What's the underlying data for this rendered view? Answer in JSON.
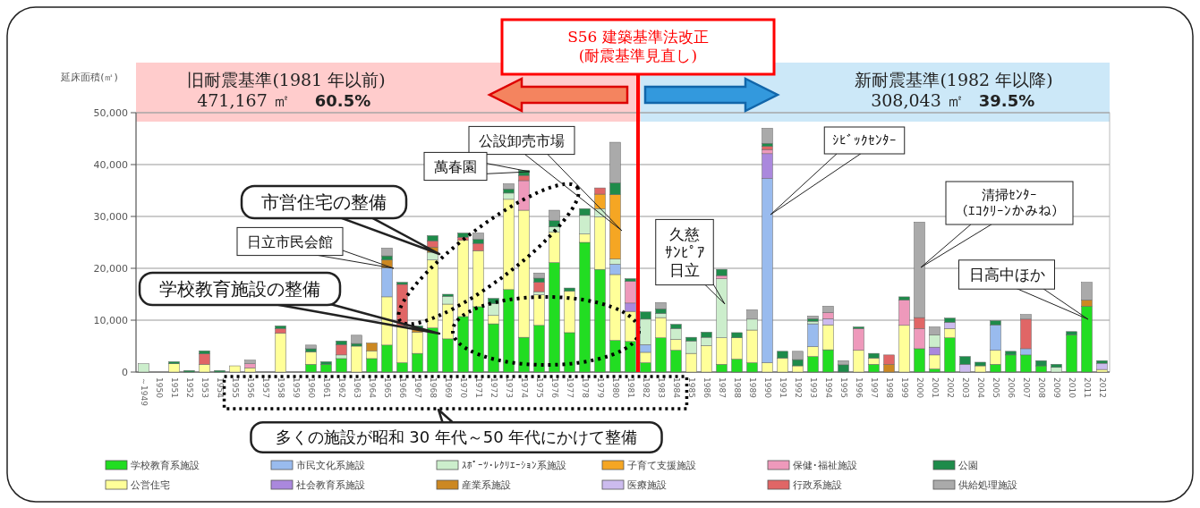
{
  "chart_data": {
    "type": "bar",
    "stacked": true,
    "ylabel": "延床面積(㎡)",
    "categories": [
      "～1949",
      "1950",
      "1951",
      "1952",
      "1953",
      "1954",
      "1955",
      "1956",
      "1957",
      "1958",
      "1959",
      "1960",
      "1961",
      "1962",
      "1963",
      "1964",
      "1965",
      "1966",
      "1967",
      "1968",
      "1969",
      "1970",
      "1971",
      "1972",
      "1973",
      "1974",
      "1975",
      "1976",
      "1977",
      "1978",
      "1979",
      "1980",
      "1981",
      "1982",
      "1983",
      "1984",
      "1985",
      "1986",
      "1987",
      "1988",
      "1989",
      "1990",
      "1991",
      "1992",
      "1993",
      "1994",
      "1995",
      "1996",
      "1997",
      "1998",
      "1999",
      "2000",
      "2001",
      "2002",
      "2003",
      "2004",
      "2005",
      "2006",
      "2007",
      "2008",
      "2009",
      "2010",
      "2011",
      "2012"
    ],
    "ylim": [
      0,
      50000
    ],
    "yticks": [
      {
        "value": 0,
        "label": "0"
      },
      {
        "value": 10000,
        "label": "10,000"
      },
      {
        "value": 20000,
        "label": "20,000"
      },
      {
        "value": 30000,
        "label": "30,000"
      },
      {
        "value": 40000,
        "label": "40,000"
      },
      {
        "value": 50000,
        "label": "50,000"
      }
    ],
    "grid": "y",
    "legend": "bottom",
    "series": [
      {
        "name": "学校教育系施設",
        "color": "#22dd22",
        "values": [
          null,
          null,
          null,
          null,
          null,
          null,
          null,
          null,
          null,
          null,
          null,
          1500,
          1500,
          2600,
          null,
          2600,
          5200,
          1800,
          3600,
          8500,
          6400,
          10700,
          12600,
          9300,
          15900,
          6700,
          9000,
          21100,
          7600,
          25000,
          19800,
          6100,
          5900,
          1800,
          6600,
          4200,
          null,
          null,
          1500,
          2500,
          1800,
          null,
          null,
          null,
          3000,
          4300,
          null,
          null,
          1500,
          null,
          null,
          4500,
          600,
          6600,
          null,
          null,
          1500,
          3300,
          3300,
          1200,
          null,
          7200,
          12700,
          null
        ]
      },
      {
        "name": "公営住宅",
        "color": "#ffff99",
        "values": [
          null,
          null,
          1600,
          null,
          1500,
          null,
          1200,
          800,
          null,
          7500,
          null,
          2400,
          null,
          null,
          5000,
          1500,
          9300,
          7100,
          4100,
          13100,
          6700,
          14700,
          10800,
          1600,
          17400,
          24500,
          5900,
          5900,
          8000,
          1600,
          10100,
          12700,
          5800,
          2000,
          3900,
          2100,
          3600,
          5100,
          5100,
          4100,
          6300,
          1800,
          2700,
          1200,
          1900,
          4800,
          null,
          4200,
          1200,
          null,
          9000,
          null,
          2700,
          1800,
          null,
          1200,
          2700,
          null,
          null,
          null,
          null,
          null,
          null,
          500
        ]
      },
      {
        "name": "市民文化系施設",
        "color": "#99bbee",
        "values": [
          null,
          null,
          null,
          null,
          null,
          null,
          null,
          null,
          null,
          null,
          null,
          null,
          null,
          null,
          null,
          null,
          5600,
          null,
          null,
          null,
          null,
          null,
          null,
          null,
          null,
          null,
          null,
          null,
          null,
          null,
          null,
          2000,
          null,
          1500,
          null,
          null,
          null,
          null,
          null,
          null,
          null,
          35500,
          null,
          null,
          4400,
          null,
          null,
          null,
          null,
          null,
          null,
          null,
          null,
          null,
          null,
          null,
          4900,
          null,
          1200,
          null,
          null,
          null,
          null,
          null
        ]
      },
      {
        "name": "社会教育系施設",
        "color": "#aa88dd",
        "values": [
          null,
          null,
          null,
          null,
          null,
          null,
          null,
          null,
          null,
          null,
          null,
          null,
          null,
          null,
          null,
          null,
          null,
          null,
          null,
          null,
          null,
          null,
          null,
          null,
          null,
          null,
          null,
          null,
          null,
          null,
          null,
          null,
          1600,
          null,
          null,
          null,
          null,
          null,
          null,
          null,
          null,
          4800,
          null,
          null,
          null,
          null,
          null,
          null,
          null,
          null,
          null,
          null,
          1500,
          null,
          null,
          null,
          null,
          null,
          null,
          null,
          null,
          null,
          null,
          null
        ]
      },
      {
        "name": "ｽﾎﾟｰﾂ･ﾚｸﾘｴｰｼｮﾝ系施設",
        "color": "#cceecc",
        "values": [
          1600,
          null,
          null,
          null,
          null,
          null,
          null,
          null,
          null,
          null,
          null,
          null,
          null,
          700,
          null,
          null,
          null,
          null,
          null,
          1500,
          1500,
          null,
          null,
          2300,
          1200,
          null,
          600,
          1000,
          null,
          3600,
          1600,
          1000,
          null,
          4900,
          800,
          2100,
          2400,
          1600,
          11400,
          null,
          2100,
          null,
          null,
          null,
          500,
          null,
          null,
          null,
          null,
          null,
          null,
          null,
          2400,
          null,
          null,
          null,
          null,
          null,
          null,
          null,
          900,
          null,
          null,
          null
        ]
      },
      {
        "name": "産業系施設",
        "color": "#cc8822",
        "values": [
          null,
          null,
          null,
          null,
          null,
          null,
          null,
          null,
          null,
          null,
          null,
          null,
          null,
          null,
          null,
          1500,
          1500,
          null,
          600,
          1000,
          null,
          null,
          null,
          null,
          null,
          null,
          null,
          null,
          null,
          null,
          null,
          null,
          null,
          null,
          null,
          null,
          null,
          null,
          null,
          null,
          null,
          null,
          null,
          null,
          null,
          null,
          null,
          null,
          null,
          1500,
          null,
          null,
          null,
          null,
          null,
          null,
          null,
          null,
          null,
          null,
          null,
          null,
          1200,
          null
        ]
      },
      {
        "name": "子育て支援施設",
        "color": "#f5a623",
        "values": [
          null,
          null,
          null,
          null,
          null,
          null,
          null,
          null,
          null,
          null,
          null,
          null,
          null,
          null,
          null,
          null,
          null,
          null,
          null,
          null,
          null,
          null,
          null,
          null,
          null,
          null,
          null,
          null,
          null,
          null,
          2800,
          12400,
          null,
          null,
          null,
          null,
          null,
          null,
          null,
          null,
          null,
          null,
          null,
          null,
          null,
          null,
          null,
          null,
          null,
          null,
          null,
          null,
          null,
          null,
          null,
          null,
          null,
          null,
          null,
          null,
          null,
          null,
          null,
          null
        ]
      },
      {
        "name": "医療施設",
        "color": "#ccbbee",
        "values": [
          null,
          null,
          null,
          null,
          null,
          null,
          null,
          null,
          null,
          null,
          null,
          null,
          null,
          null,
          null,
          null,
          null,
          null,
          null,
          null,
          null,
          null,
          null,
          null,
          null,
          null,
          null,
          null,
          null,
          null,
          null,
          null,
          null,
          null,
          null,
          null,
          null,
          null,
          null,
          null,
          null,
          null,
          null,
          null,
          null,
          1200,
          null,
          null,
          null,
          null,
          null,
          null,
          null,
          1200,
          1500,
          null,
          null,
          null,
          null,
          null,
          null,
          null,
          null,
          1200
        ]
      },
      {
        "name": "保健･福祉施設",
        "color": "#ee99bb",
        "values": [
          null,
          null,
          null,
          null,
          null,
          null,
          null,
          800,
          null,
          null,
          null,
          null,
          null,
          null,
          null,
          null,
          null,
          null,
          null,
          null,
          null,
          null,
          null,
          null,
          null,
          5700,
          null,
          null,
          null,
          null,
          null,
          null,
          4200,
          null,
          null,
          null,
          null,
          null,
          600,
          null,
          null,
          800,
          null,
          null,
          null,
          1200,
          null,
          4200,
          null,
          null,
          4900,
          3900,
          null,
          null,
          null,
          null,
          null,
          null,
          null,
          null,
          null,
          null,
          null,
          null
        ]
      },
      {
        "name": "行政系施設",
        "color": "#e06666",
        "values": [
          null,
          null,
          null,
          null,
          2000,
          null,
          null,
          null,
          null,
          900,
          null,
          null,
          null,
          2000,
          null,
          null,
          null,
          8000,
          null,
          1200,
          null,
          600,
          1400,
          null,
          null,
          1000,
          1800,
          null,
          null,
          null,
          1200,
          null,
          null,
          null,
          null,
          null,
          null,
          null,
          null,
          null,
          null,
          600,
          null,
          null,
          null,
          null,
          null,
          null,
          null,
          1800,
          null,
          2100,
          null,
          null,
          null,
          null,
          null,
          null,
          5700,
          null,
          null,
          null,
          null,
          null
        ]
      },
      {
        "name": "公園",
        "color": "#1e8b4a",
        "values": [
          null,
          null,
          400,
          300,
          600,
          300,
          null,
          null,
          null,
          500,
          null,
          600,
          500,
          700,
          500,
          null,
          800,
          400,
          600,
          1000,
          400,
          800,
          800,
          1000,
          800,
          1000,
          800,
          1200,
          600,
          1300,
          null,
          2300,
          500,
          1400,
          900,
          800,
          700,
          1000,
          1200,
          1000,
          null,
          600,
          1300,
          1200,
          500,
          null,
          1400,
          300,
          900,
          null,
          600,
          null,
          null,
          800,
          1500,
          700,
          800,
          700,
          null,
          1000,
          600,
          600,
          null,
          500
        ]
      },
      {
        "name": "供給処理施設",
        "color": "#aaaaaa",
        "values": [
          null,
          null,
          null,
          null,
          null,
          null,
          null,
          700,
          null,
          null,
          null,
          700,
          null,
          null,
          1600,
          null,
          1500,
          null,
          null,
          null,
          null,
          null,
          1200,
          null,
          1000,
          null,
          1000,
          2000,
          null,
          null,
          null,
          7800,
          null,
          null,
          1200,
          null,
          null,
          null,
          null,
          null,
          1800,
          2900,
          null,
          1600,
          500,
          1200,
          800,
          null,
          null,
          null,
          null,
          18400,
          1500,
          null,
          null,
          null,
          null,
          null,
          900,
          null,
          null,
          null,
          3400,
          null
        ]
      }
    ],
    "ref_lines": [
      {
        "axis": "x",
        "value": "1981",
        "label": "S56 建築基準法改正\n(耐震基準見直し)",
        "color": "#ff0000"
      }
    ],
    "annotations": [
      "公設卸売市場",
      "萬春園",
      "市営住宅の整備",
      "日立市民会館",
      "学校教育施設の整備",
      "ｼﾋﾞｯｸｾﾝﾀｰ",
      "久慈ｻﾝﾋﾟｱ日立",
      "清掃ｾﾝﾀｰ（ｴｺｸﾘｰﾝかみね）",
      "日高中ほか",
      "多くの施設が昭和 30 年代～50 年代にかけて整備",
      "旧耐震基準(1981 年以前)",
      "471,167 ㎡",
      "60.5%",
      "新耐震基準(1982 年以降)",
      "308,043 ㎡",
      "39.5%"
    ]
  }
}
